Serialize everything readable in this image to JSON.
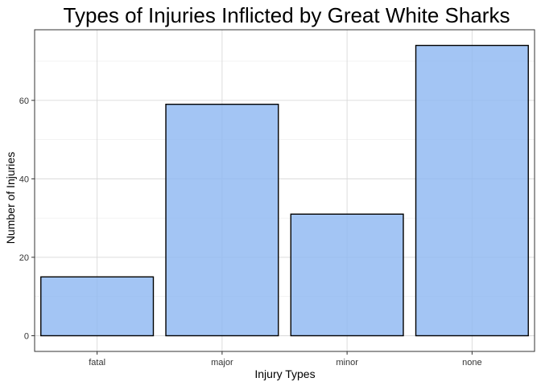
{
  "chart_data": {
    "type": "bar",
    "title": "Types of Injuries Inflicted by Great White Sharks",
    "xlabel": "Injury Types",
    "ylabel": "Number of Injuries",
    "categories": [
      "fatal",
      "major",
      "minor",
      "none"
    ],
    "values": [
      15,
      59,
      31,
      74
    ],
    "ylim": [
      -4,
      78
    ],
    "yticks": [
      0,
      20,
      40,
      60
    ],
    "grid": true,
    "bar_color": "#8fb8f2",
    "bar_border_color": "#000000"
  }
}
